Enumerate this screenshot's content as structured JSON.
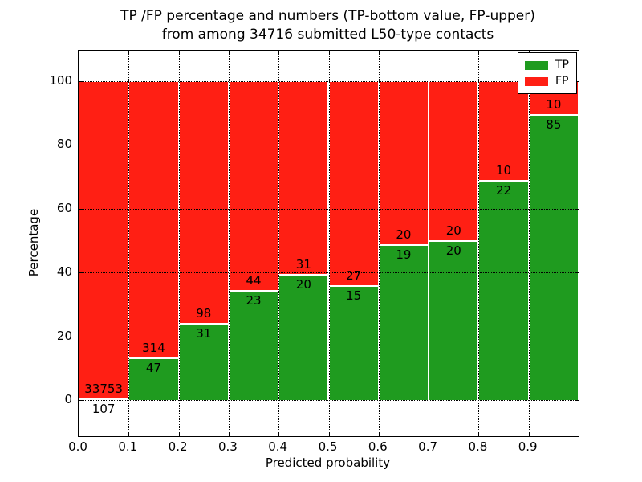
{
  "figure": {
    "title_line1": "TP /FP percentage and numbers (TP-bottom value, FP-upper)",
    "title_line2": "from among 34716 submitted L50-type contacts"
  },
  "chart_data": {
    "type": "bar",
    "stacked": true,
    "orientation": "vertical",
    "title": "TP /FP percentage and numbers (TP-bottom value, FP-upper) from among 34716 submitted L50-type contacts",
    "xlabel": "Predicted probability",
    "ylabel": "Percentage",
    "total_contacts": 34716,
    "bins": [
      "0.0-0.1",
      "0.1-0.2",
      "0.2-0.3",
      "0.3-0.4",
      "0.4-0.5",
      "0.5-0.6",
      "0.6-0.7",
      "0.7-0.8",
      "0.8-0.9",
      "0.9-1.0"
    ],
    "xticks": [
      "0.0",
      "0.1",
      "0.2",
      "0.3",
      "0.4",
      "0.5",
      "0.6",
      "0.7",
      "0.8",
      "0.9"
    ],
    "yticks": [
      0,
      20,
      40,
      60,
      80,
      100
    ],
    "ylim": [
      -11,
      110
    ],
    "xlim": [
      0.0,
      1.0
    ],
    "grid": true,
    "bar_total_percent": 100,
    "legend_position": "upper right",
    "series": [
      {
        "name": "TP",
        "color": "#1f9b1f",
        "counts": [
          107,
          47,
          31,
          23,
          20,
          15,
          19,
          20,
          22,
          85
        ]
      },
      {
        "name": "FP",
        "color": "#ff1f14",
        "counts": [
          33753,
          314,
          98,
          44,
          31,
          27,
          20,
          20,
          10,
          10
        ]
      }
    ],
    "tp_percentages": [
      0.32,
      13.02,
      24.03,
      34.33,
      39.22,
      35.71,
      48.72,
      50.0,
      68.75,
      89.47
    ]
  }
}
